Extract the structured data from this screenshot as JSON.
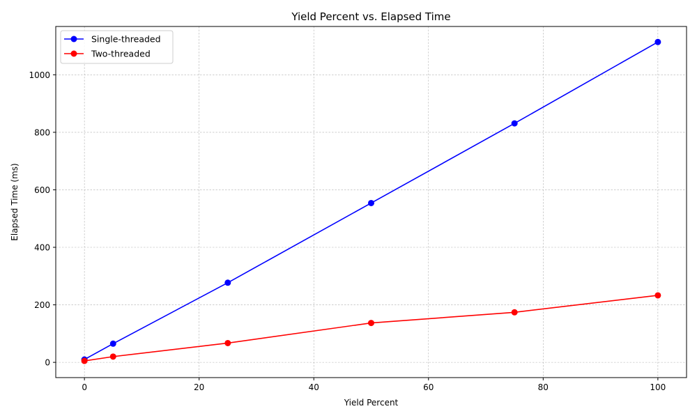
{
  "chart_data": {
    "type": "line",
    "title": "Yield Percent vs. Elapsed Time",
    "xlabel": "Yield Percent",
    "ylabel": "Elapsed Time (ms)",
    "xlim": [
      -5,
      105
    ],
    "ylim": [
      -53,
      1168
    ],
    "xticks": [
      0,
      20,
      40,
      60,
      80,
      100
    ],
    "yticks": [
      0,
      200,
      400,
      600,
      800,
      1000
    ],
    "grid": true,
    "legend_position": "top-left",
    "series": [
      {
        "name": "Single-threaded",
        "color": "#0000ff",
        "marker": "circle",
        "x": [
          0,
          5,
          25,
          50,
          75,
          100
        ],
        "y": [
          10,
          65,
          277,
          554,
          831,
          1114
        ]
      },
      {
        "name": "Two-threaded",
        "color": "#ff0000",
        "marker": "circle",
        "x": [
          0,
          5,
          25,
          50,
          75,
          100
        ],
        "y": [
          5,
          20,
          67,
          137,
          174,
          233
        ]
      }
    ]
  }
}
